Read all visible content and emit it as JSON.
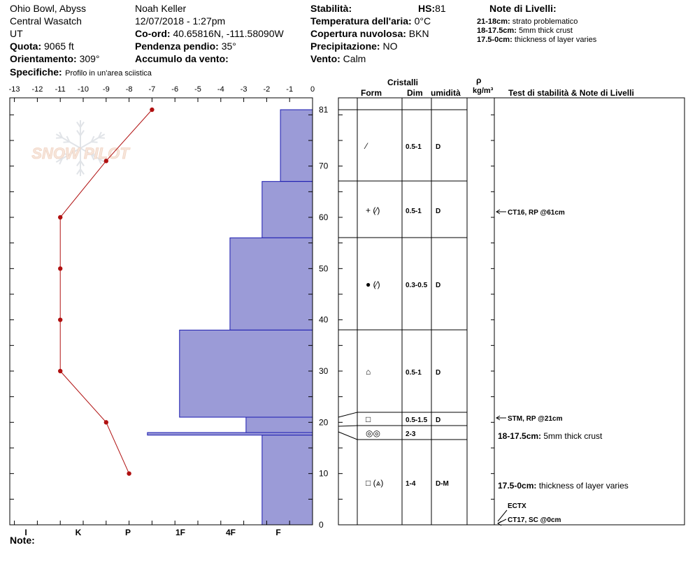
{
  "header": {
    "location": "Ohio Bowl, Abyss",
    "range": "Central Wasatch",
    "state": "UT",
    "elevation_label": "Quota:",
    "elevation_value": "9065 ft",
    "aspect_label": "Orientamento:",
    "aspect_value": "309°",
    "specifics_label": "Specifiche:",
    "specifics_value": "Profilo in un'area sciistica",
    "observer": "Noah Keller",
    "datetime": "12/07/2018 - 1:27pm",
    "coord_label": "Co-ord:",
    "coord_value": "40.65816N, -111.58090W",
    "slope_label": "Pendenza pendio:",
    "slope_value": "35°",
    "wind_loading_label": "Accumulo da vento:",
    "stability_label": "Stabilità:",
    "hs_label": "HS:",
    "hs_value": "81",
    "air_temp_label": "Temperatura dell'aria:",
    "air_temp_value": "0°C",
    "cloud_label": "Copertura nuvolosa:",
    "cloud_value": "BKN",
    "precip_label": "Precipitazione:",
    "precip_value": "NO",
    "wind_label": "Vento:",
    "wind_value": "Calm"
  },
  "layer_notes": {
    "title": "Note di Livelli:",
    "items": [
      {
        "range": "21-18cm:",
        "text": "strato problematico"
      },
      {
        "range": "18-17.5cm:",
        "text": "5mm thick crust"
      },
      {
        "range": "17.5-0cm:",
        "text": "thickness of layer varies"
      }
    ]
  },
  "logo_text": "SNOW PILOT",
  "note_label": "Note:",
  "table": {
    "crystals_title": "Cristalli",
    "form_header": "Form",
    "dim_header": "Dim",
    "moisture_header": "umidità",
    "density_symbol": "ρ",
    "density_unit": "kg/m³",
    "notes_header": "Test di stabilità & Note di Livelli",
    "rows": [
      {
        "top": 81,
        "bottom": 67,
        "form": "⁄",
        "size": "0.5-1",
        "moisture": "D"
      },
      {
        "top": 67,
        "bottom": 56,
        "form": "+ (⁄)",
        "size": "0.5-1",
        "moisture": "D"
      },
      {
        "top": 56,
        "bottom": 38,
        "form": "● (⁄)",
        "size": "0.3-0.5",
        "moisture": "D"
      },
      {
        "top": 38,
        "bottom": 22,
        "form": "⌂",
        "size": "0.5-1",
        "moisture": "D"
      },
      {
        "top": 22,
        "bottom": 19,
        "form": "□",
        "size": "0.5-1.5",
        "moisture": "D"
      },
      {
        "top": 19,
        "bottom": 16.5,
        "form": "◎◎",
        "size": "2-3",
        "moisture": ""
      },
      {
        "top": 16.5,
        "bottom": 0,
        "form": "□ (⩓)",
        "size": "1-4",
        "moisture": "D-M"
      }
    ],
    "annotations": [
      {
        "text": "CT16, RP @61cm",
        "depth": 61,
        "arrow": true
      },
      {
        "text": "STM, RP @21cm",
        "depth": 21,
        "arrow": true
      },
      {
        "text": "ECTX",
        "depth": 4,
        "arrow": false
      },
      {
        "text": "CT17, SC @0cm",
        "depth": 0.9,
        "arrow": true
      }
    ],
    "layer_notes_in_table": [
      {
        "range": "18-17.5cm:",
        "text": "5mm thick crust",
        "depth": 17.3
      },
      {
        "range": "17.5-0cm:",
        "text": "thickness of layer varies",
        "depth": 7.6
      }
    ]
  },
  "chart_data": {
    "type": "line",
    "y_ticks": [
      0,
      10,
      20,
      30,
      40,
      50,
      60,
      70,
      81
    ],
    "ylim": [
      0,
      81
    ],
    "x_ticks": [
      -13,
      -12,
      -11,
      -10,
      -9,
      -8,
      -7,
      -6,
      -5,
      -4,
      -3,
      -2,
      -1,
      0
    ],
    "xlim": [
      -13,
      0
    ],
    "hardness_ticks": [
      "I",
      "K",
      "P",
      "1F",
      "4F",
      "F"
    ],
    "temperature_profile": [
      {
        "depth": 81,
        "temp": -7
      },
      {
        "depth": 71,
        "temp": -9
      },
      {
        "depth": 60,
        "temp": -11
      },
      {
        "depth": 50,
        "temp": -11
      },
      {
        "depth": 40,
        "temp": -11
      },
      {
        "depth": 30,
        "temp": -11
      },
      {
        "depth": 20,
        "temp": -9
      },
      {
        "depth": 10,
        "temp": -8
      }
    ],
    "hardness_layers": [
      {
        "top": 81,
        "bottom": 67,
        "hardness": -1.4
      },
      {
        "top": 67,
        "bottom": 56,
        "hardness": -2.2
      },
      {
        "top": 56,
        "bottom": 38,
        "hardness": -3.6
      },
      {
        "top": 38,
        "bottom": 21,
        "hardness": -5.8
      },
      {
        "top": 21,
        "bottom": 18,
        "hardness": -2.9
      },
      {
        "top": 18,
        "bottom": 17.5,
        "hardness": -7.2
      },
      {
        "top": 17.5,
        "bottom": 0,
        "hardness": -2.2
      }
    ],
    "colors": {
      "hardness_fill": "#9b9bd7",
      "hardness_stroke": "#1a1ab0",
      "temperature": "#b01010"
    }
  }
}
